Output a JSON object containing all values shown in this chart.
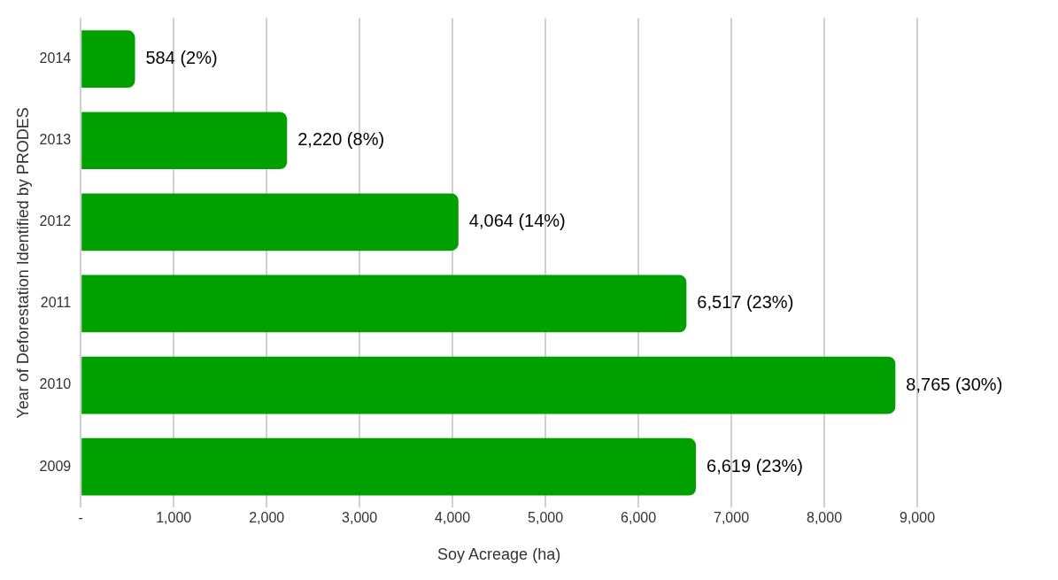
{
  "chart_data": {
    "type": "bar",
    "orientation": "horizontal",
    "xlabel": "Soy Acreage (ha)",
    "ylabel": "Year of Deforestation Identified by PRODES",
    "categories": [
      "2014",
      "2013",
      "2012",
      "2011",
      "2010",
      "2009"
    ],
    "values": [
      584,
      2220,
      4064,
      6517,
      8765,
      6619
    ],
    "value_labels": [
      "584 (2%)",
      "2,220 (8%)",
      "4,064 (14%)",
      "6,517 (23%)",
      "8,765 (30%)",
      "6,619 (23%)"
    ],
    "color": "#00a000",
    "xlim": [
      0,
      9000
    ],
    "xticks": [
      {
        "value": 0,
        "label": "-"
      },
      {
        "value": 1000,
        "label": "1,000"
      },
      {
        "value": 2000,
        "label": "2,000"
      },
      {
        "value": 3000,
        "label": "3,000"
      },
      {
        "value": 4000,
        "label": "4,000"
      },
      {
        "value": 5000,
        "label": "5,000"
      },
      {
        "value": 6000,
        "label": "6,000"
      },
      {
        "value": 7000,
        "label": "7,000"
      },
      {
        "value": 8000,
        "label": "8,000"
      },
      {
        "value": 9000,
        "label": "9,000"
      }
    ],
    "grid": "x",
    "legend": false
  }
}
